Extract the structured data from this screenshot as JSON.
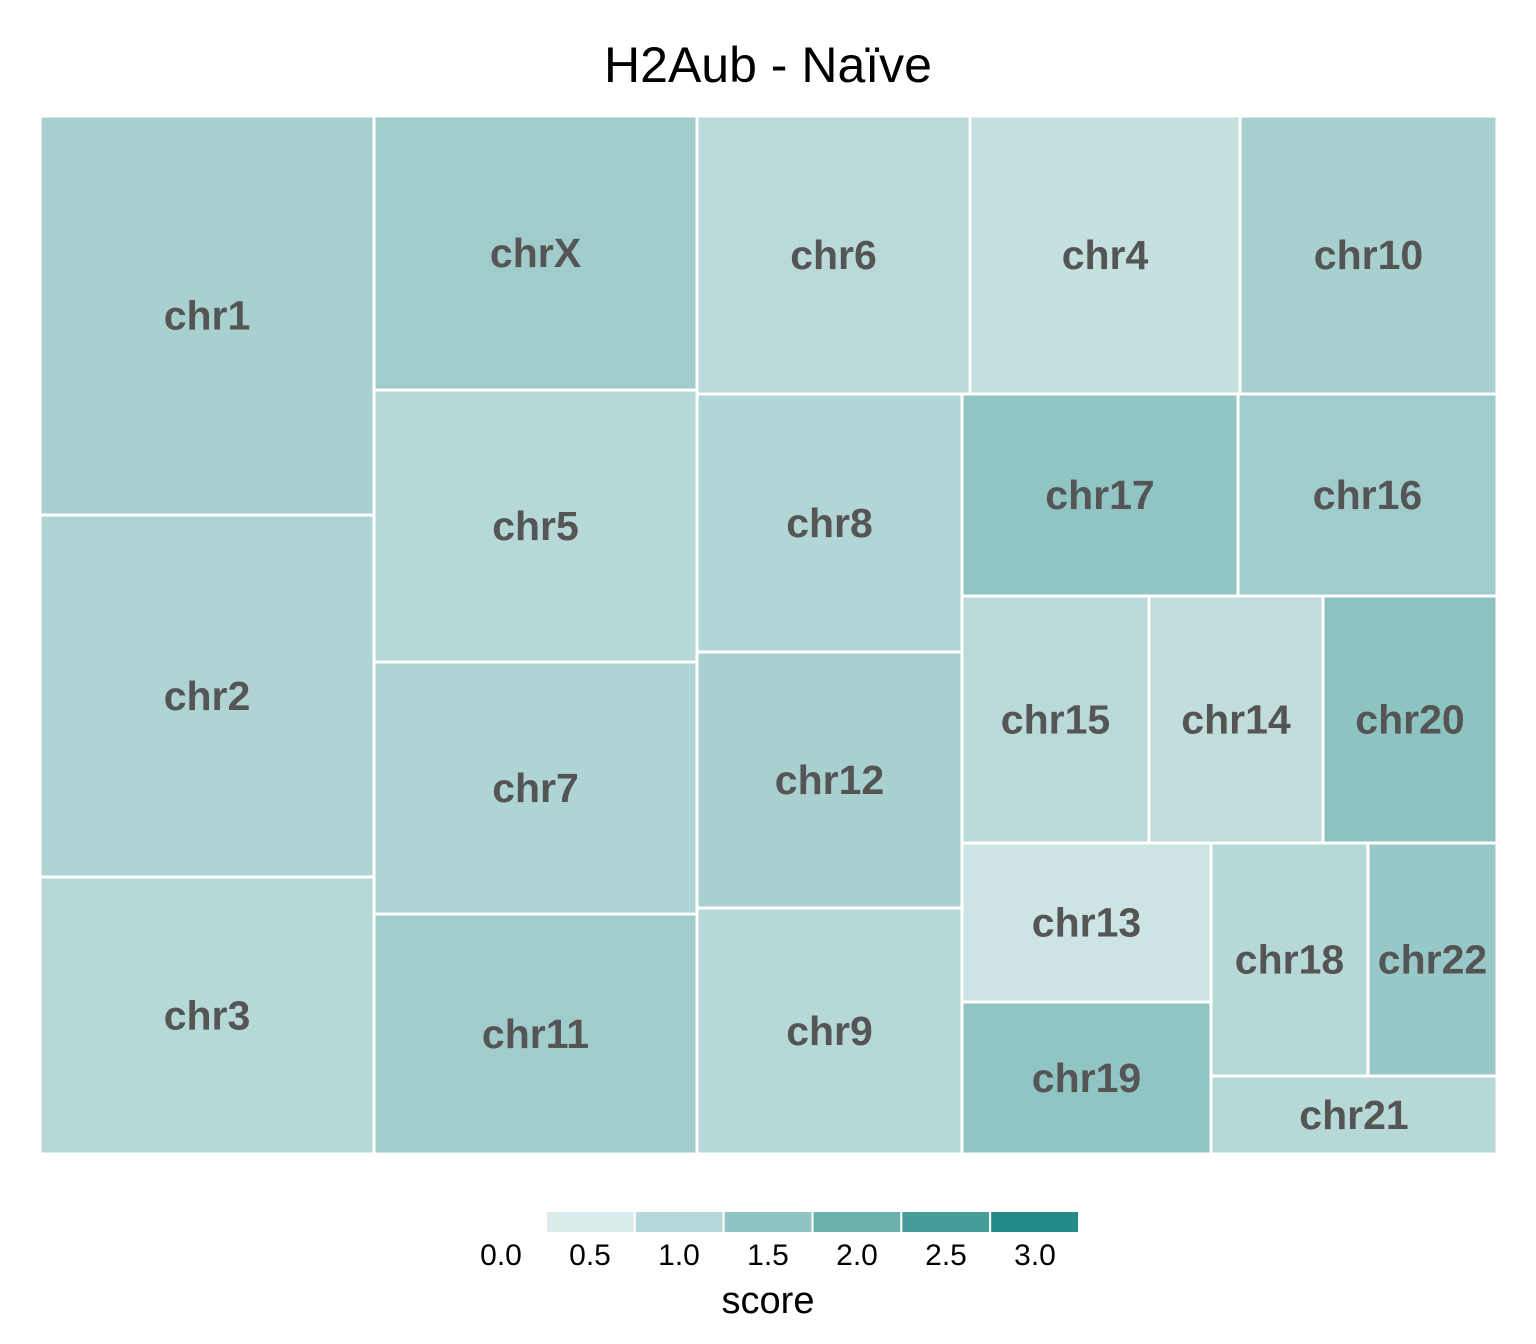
{
  "chart_data": {
    "type": "treemap",
    "title": "H2Aub - Naïve",
    "tiles": [
      {
        "label": "chr1",
        "score": 1.2
      },
      {
        "label": "chr2",
        "score": 1.1
      },
      {
        "label": "chr3",
        "score": 1.0
      },
      {
        "label": "chrX",
        "score": 1.3
      },
      {
        "label": "chr5",
        "score": 1.0
      },
      {
        "label": "chr7",
        "score": 1.1
      },
      {
        "label": "chr11",
        "score": 1.3
      },
      {
        "label": "chr6",
        "score": 0.95
      },
      {
        "label": "chr8",
        "score": 1.05
      },
      {
        "label": "chr12",
        "score": 1.2
      },
      {
        "label": "chr9",
        "score": 1.0
      },
      {
        "label": "chr4",
        "score": 0.8
      },
      {
        "label": "chr10",
        "score": 1.2
      },
      {
        "label": "chr17",
        "score": 1.5
      },
      {
        "label": "chr16",
        "score": 1.3
      },
      {
        "label": "chr15",
        "score": 0.95
      },
      {
        "label": "chr14",
        "score": 0.85
      },
      {
        "label": "chr20",
        "score": 1.55
      },
      {
        "label": "chr13",
        "score": 0.7
      },
      {
        "label": "chr19",
        "score": 1.5
      },
      {
        "label": "chr18",
        "score": 1.0
      },
      {
        "label": "chr22",
        "score": 1.4
      },
      {
        "label": "chr21",
        "score": 1.0
      }
    ],
    "legend": {
      "title": "score",
      "ticks": [
        "0.0",
        "0.5",
        "1.0",
        "1.5",
        "2.0",
        "2.5",
        "3.0"
      ],
      "range": [
        0,
        3
      ],
      "colors": [
        "#dcebeb",
        "#b5d8d8",
        "#90c4c2",
        "#6cb0ad",
        "#479d99",
        "#238a86"
      ]
    },
    "low_color": "#ffffff",
    "high_color": "#238a86"
  }
}
